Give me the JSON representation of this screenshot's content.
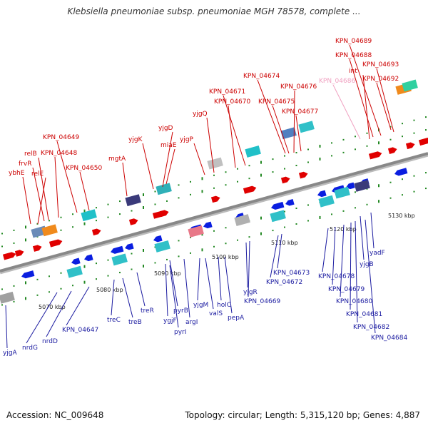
{
  "title": "Klebsiella pneumoniae subsp. pneumoniae MGH 78578, complete ...",
  "footer": {
    "accession": "Accession: NC_009648",
    "topology": "Topology: circular; Length: 5,315,120 bp; Genes: 4,887"
  },
  "colors": {
    "forward_gene": "#e00000",
    "reverse_gene": "#0a1ee0",
    "forward_label": "#cc0000",
    "reverse_label": "#1a1aa0",
    "faded_label": "#f0a0c0",
    "backbone": "#888888",
    "tick": "#228822"
  },
  "scale_labels": [
    "5070 kbp",
    "5080 kbp",
    "5090 kbp",
    "5100 kbp",
    "5110 kbp",
    "5120 kbp",
    "5130 kbp"
  ],
  "forward_labels": [
    "KPN_04689",
    "KPN_04688",
    "KPN_04693",
    "int",
    "KPN_04692",
    "KPN_04686",
    "KPN_04674",
    "KPN_04676",
    "KPN_04671",
    "KPN_04675",
    "KPN_04670",
    "KPN_04677",
    "yjgQ",
    "yjgD",
    "yjgK",
    "miaE",
    "yjgP",
    "KPN_04649",
    "KPN_04648",
    "mgtA",
    "KPN_04650",
    "relB",
    "frvR",
    "ybhE",
    "relE"
  ],
  "reverse_labels": [
    "yadF",
    "yjgB",
    "KPN_04673",
    "KPN_04672",
    "KPN_04678",
    "KPN_04679",
    "KPN_04669",
    "KPN_04680",
    "yjgR",
    "KPN_04681",
    "KPN_04682",
    "KPN_04684",
    "yjgM",
    "holC",
    "valS",
    "pepA",
    "pyrB",
    "argI",
    "treR",
    "ygjF",
    "pyrI",
    "treC",
    "treB",
    "KPN_04647",
    "nrdD",
    "nrdG",
    "yjgA"
  ]
}
